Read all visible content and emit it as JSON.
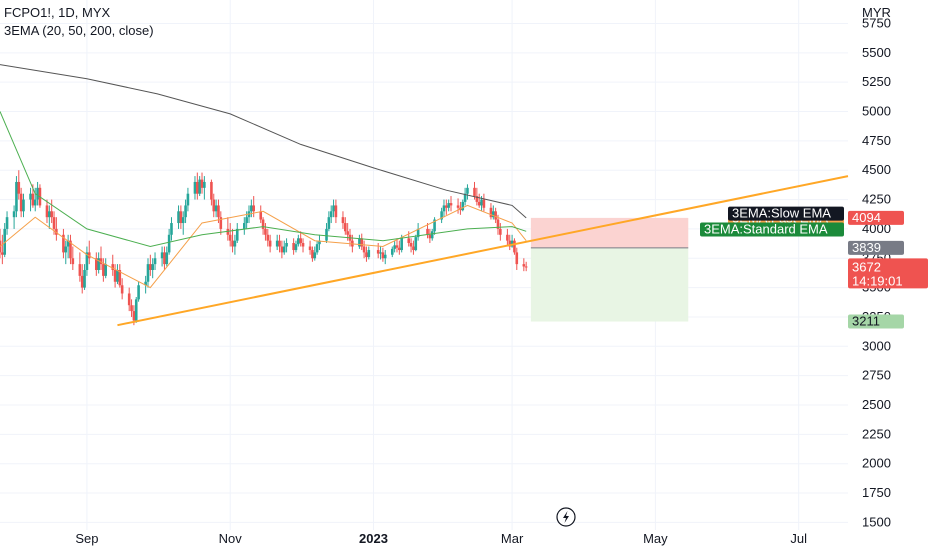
{
  "header": {
    "symbol_line": "FCPO1!, 1D, MYX",
    "indicator_line": "3EMA (20, 50, 200, close)"
  },
  "axis": {
    "currency": "MYR",
    "y_ticks": [
      "5750",
      "5500",
      "5250",
      "5000",
      "4750",
      "4500",
      "4250",
      "4000",
      "3750",
      "3500",
      "3250",
      "3000",
      "2750",
      "2500",
      "2250",
      "2000",
      "1750",
      "1500"
    ],
    "x_ticks": [
      "Sep",
      "Nov",
      "2023",
      "Mar",
      "May",
      "Jul"
    ]
  },
  "price_tags": {
    "slow_ema_value": "4094",
    "entry_value": "3839",
    "last_price": "3672",
    "countdown": "14:19:01",
    "target_value": "3211"
  },
  "ema_labels": {
    "slow": "3EMA:Slow EMA",
    "fast": "3EMA:Fast EMA",
    "standard": "3EMA:Standard EMA"
  },
  "icons": {
    "flash_icon": "lightning-bolt-icon"
  },
  "colors": {
    "up": "#26a69a",
    "down": "#ef5350",
    "slow_ema": "#555555",
    "fast_ema": "#f5a04a",
    "standard_ema": "#4caf50",
    "trendline": "#ffa726",
    "risk_zone": "#fbd3d1",
    "reward_zone": "#e8f5e4"
  },
  "chart_data": {
    "type": "candlestick",
    "symbol": "FCPO1!",
    "interval": "1D",
    "exchange": "MYX",
    "y_unit": "MYR",
    "ylim": [
      1350,
      5950
    ],
    "x_range": [
      "2022-07-26",
      "2023-07-22"
    ],
    "last_close": 3672,
    "candles": [
      [
        "2022-07-26",
        3900,
        4000,
        3750,
        3800
      ],
      [
        "2022-07-27",
        3800,
        3950,
        3700,
        3780
      ],
      [
        "2022-07-28",
        3780,
        4050,
        3760,
        4000
      ],
      [
        "2022-07-29",
        4000,
        4150,
        3950,
        4100
      ],
      [
        "2022-08-01",
        4100,
        4200,
        4000,
        4150
      ],
      [
        "2022-08-02",
        4150,
        4450,
        4100,
        4400
      ],
      [
        "2022-08-03",
        4400,
        4500,
        4250,
        4300
      ],
      [
        "2022-08-04",
        4300,
        4350,
        4100,
        4150
      ],
      [
        "2022-08-05",
        4150,
        4300,
        4100,
        4250
      ],
      [
        "2022-08-08",
        4250,
        4350,
        4150,
        4300
      ],
      [
        "2022-08-09",
        4300,
        4380,
        4180,
        4200
      ],
      [
        "2022-08-10",
        4200,
        4350,
        4150,
        4250
      ],
      [
        "2022-08-11",
        4250,
        4400,
        4200,
        4350
      ],
      [
        "2022-08-12",
        4350,
        4380,
        4180,
        4200
      ],
      [
        "2022-08-15",
        4200,
        4250,
        4050,
        4100
      ],
      [
        "2022-08-16",
        4100,
        4200,
        4000,
        4150
      ],
      [
        "2022-08-17",
        4150,
        4250,
        4050,
        4100
      ],
      [
        "2022-08-18",
        4100,
        4150,
        3950,
        4000
      ],
      [
        "2022-08-19",
        4000,
        4100,
        3900,
        3950
      ],
      [
        "2022-08-22",
        3950,
        4000,
        3750,
        3800
      ],
      [
        "2022-08-23",
        3800,
        3900,
        3700,
        3850
      ],
      [
        "2022-08-24",
        3850,
        3950,
        3750,
        3900
      ],
      [
        "2022-08-25",
        3900,
        3950,
        3700,
        3750
      ],
      [
        "2022-08-26",
        3750,
        3850,
        3650,
        3700
      ],
      [
        "2022-08-29",
        3700,
        3800,
        3550,
        3600
      ],
      [
        "2022-08-30",
        3600,
        3700,
        3450,
        3500
      ],
      [
        "2022-08-31",
        3500,
        3700,
        3480,
        3650
      ],
      [
        "2022-09-01",
        3650,
        3850,
        3600,
        3800
      ],
      [
        "2022-09-02",
        3800,
        3900,
        3700,
        3750
      ],
      [
        "2022-09-05",
        3750,
        3800,
        3600,
        3650
      ],
      [
        "2022-09-06",
        3650,
        3800,
        3620,
        3750
      ],
      [
        "2022-09-07",
        3750,
        3850,
        3650,
        3700
      ],
      [
        "2022-09-08",
        3700,
        3750,
        3550,
        3600
      ],
      [
        "2022-09-09",
        3600,
        3750,
        3580,
        3700
      ],
      [
        "2022-09-12",
        3700,
        3780,
        3600,
        3650
      ],
      [
        "2022-09-13",
        3650,
        3700,
        3500,
        3550
      ],
      [
        "2022-09-14",
        3550,
        3700,
        3530,
        3650
      ],
      [
        "2022-09-15",
        3650,
        3700,
        3500,
        3520
      ],
      [
        "2022-09-16",
        3520,
        3580,
        3400,
        3450
      ],
      [
        "2022-09-19",
        3450,
        3500,
        3300,
        3350
      ],
      [
        "2022-09-20",
        3350,
        3400,
        3250,
        3300
      ],
      [
        "2022-09-21",
        3300,
        3350,
        3180,
        3220
      ],
      [
        "2022-09-22",
        3220,
        3420,
        3200,
        3400
      ],
      [
        "2022-09-23",
        3400,
        3550,
        3380,
        3520
      ],
      [
        "2022-09-26",
        3520,
        3600,
        3450,
        3550
      ],
      [
        "2022-09-27",
        3550,
        3750,
        3500,
        3700
      ],
      [
        "2022-09-28",
        3700,
        3780,
        3600,
        3650
      ],
      [
        "2022-09-29",
        3650,
        3750,
        3580,
        3700
      ],
      [
        "2022-09-30",
        3700,
        3800,
        3650,
        3750
      ],
      [
        "2022-10-03",
        3750,
        3850,
        3680,
        3800
      ],
      [
        "2022-10-04",
        3800,
        3850,
        3650,
        3700
      ],
      [
        "2022-10-05",
        3700,
        3850,
        3680,
        3800
      ],
      [
        "2022-10-06",
        3800,
        4000,
        3780,
        3950
      ],
      [
        "2022-10-07",
        3950,
        4100,
        3900,
        4050
      ],
      [
        "2022-10-10",
        4050,
        4200,
        4000,
        4150
      ],
      [
        "2022-10-11",
        4150,
        4200,
        4000,
        4050
      ],
      [
        "2022-10-12",
        4050,
        4150,
        3950,
        4100
      ],
      [
        "2022-10-13",
        4100,
        4250,
        4050,
        4200
      ],
      [
        "2022-10-14",
        4200,
        4350,
        4150,
        4300
      ],
      [
        "2022-10-17",
        4300,
        4450,
        4250,
        4400
      ],
      [
        "2022-10-18",
        4400,
        4480,
        4250,
        4300
      ],
      [
        "2022-10-19",
        4300,
        4450,
        4280,
        4420
      ],
      [
        "2022-10-20",
        4420,
        4480,
        4300,
        4350
      ],
      [
        "2022-10-21",
        4350,
        4450,
        4250,
        4400
      ],
      [
        "2022-10-24",
        4400,
        4420,
        4200,
        4250
      ],
      [
        "2022-10-25",
        4250,
        4300,
        4100,
        4150
      ],
      [
        "2022-10-26",
        4150,
        4250,
        4100,
        4200
      ],
      [
        "2022-10-27",
        4200,
        4250,
        4050,
        4100
      ],
      [
        "2022-10-28",
        4100,
        4150,
        3950,
        4000
      ],
      [
        "2022-10-31",
        4000,
        4100,
        3900,
        3950
      ],
      [
        "2022-11-01",
        3950,
        4050,
        3850,
        3900
      ],
      [
        "2022-11-02",
        3900,
        4000,
        3800,
        3850
      ],
      [
        "2022-11-03",
        3850,
        3950,
        3780,
        3900
      ],
      [
        "2022-11-04",
        3900,
        4050,
        3880,
        4000
      ],
      [
        "2022-11-07",
        4000,
        4100,
        3950,
        4050
      ],
      [
        "2022-11-08",
        4050,
        4150,
        4000,
        4100
      ],
      [
        "2022-11-09",
        4100,
        4200,
        4050,
        4150
      ],
      [
        "2022-11-10",
        4150,
        4250,
        4100,
        4200
      ],
      [
        "2022-11-11",
        4200,
        4280,
        4100,
        4150
      ],
      [
        "2022-11-14",
        4150,
        4200,
        4050,
        4080
      ],
      [
        "2022-11-15",
        4080,
        4100,
        3950,
        4000
      ],
      [
        "2022-11-16",
        4000,
        4050,
        3900,
        3950
      ],
      [
        "2022-11-17",
        3950,
        4000,
        3850,
        3900
      ],
      [
        "2022-11-18",
        3900,
        3950,
        3800,
        3850
      ],
      [
        "2022-11-21",
        3850,
        3950,
        3820,
        3900
      ],
      [
        "2022-11-22",
        3900,
        3950,
        3800,
        3850
      ],
      [
        "2022-11-23",
        3850,
        3900,
        3750,
        3800
      ],
      [
        "2022-11-24",
        3800,
        3900,
        3780,
        3850
      ],
      [
        "2022-11-25",
        3850,
        3920,
        3800,
        3880
      ],
      [
        "2022-11-28",
        3880,
        3920,
        3780,
        3820
      ],
      [
        "2022-11-29",
        3820,
        3900,
        3800,
        3870
      ],
      [
        "2022-11-30",
        3870,
        3950,
        3850,
        3920
      ],
      [
        "2022-12-01",
        3920,
        3980,
        3850,
        3880
      ],
      [
        "2022-12-02",
        3880,
        3920,
        3800,
        3850
      ],
      [
        "2022-12-05",
        3850,
        3900,
        3780,
        3820
      ],
      [
        "2022-12-06",
        3820,
        3850,
        3720,
        3750
      ],
      [
        "2022-12-07",
        3750,
        3850,
        3730,
        3800
      ],
      [
        "2022-12-08",
        3800,
        3900,
        3780,
        3870
      ],
      [
        "2022-12-09",
        3870,
        3950,
        3820,
        3900
      ],
      [
        "2022-12-12",
        3900,
        4050,
        3880,
        4000
      ],
      [
        "2022-12-13",
        4000,
        4150,
        3980,
        4100
      ],
      [
        "2022-12-14",
        4100,
        4200,
        4050,
        4150
      ],
      [
        "2022-12-15",
        4150,
        4250,
        4100,
        4200
      ],
      [
        "2022-12-16",
        4200,
        4250,
        4050,
        4100
      ],
      [
        "2022-12-19",
        4100,
        4150,
        4000,
        4050
      ],
      [
        "2022-12-20",
        4050,
        4100,
        3950,
        3980
      ],
      [
        "2022-12-21",
        3980,
        4050,
        3900,
        3950
      ],
      [
        "2022-12-22",
        3950,
        4000,
        3850,
        3900
      ],
      [
        "2022-12-23",
        3900,
        3950,
        3800,
        3850
      ],
      [
        "2022-12-26",
        3850,
        3950,
        3830,
        3920
      ],
      [
        "2022-12-27",
        3920,
        3960,
        3820,
        3850
      ],
      [
        "2022-12-28",
        3850,
        3900,
        3750,
        3800
      ],
      [
        "2022-12-29",
        3800,
        3850,
        3720,
        3760
      ],
      [
        "2022-12-30",
        3760,
        3850,
        3740,
        3820
      ],
      [
        "2023-01-03",
        3820,
        3880,
        3750,
        3790
      ],
      [
        "2023-01-04",
        3790,
        3850,
        3740,
        3800
      ],
      [
        "2023-01-05",
        3800,
        3840,
        3720,
        3750
      ],
      [
        "2023-01-06",
        3750,
        3820,
        3700,
        3780
      ],
      [
        "2023-01-09",
        3780,
        3850,
        3760,
        3830
      ],
      [
        "2023-01-10",
        3830,
        3900,
        3800,
        3860
      ],
      [
        "2023-01-11",
        3860,
        3920,
        3800,
        3840
      ],
      [
        "2023-01-12",
        3840,
        3900,
        3780,
        3820
      ],
      [
        "2023-01-13",
        3820,
        3950,
        3800,
        3920
      ],
      [
        "2023-01-16",
        3920,
        3980,
        3850,
        3880
      ],
      [
        "2023-01-17",
        3880,
        3920,
        3800,
        3850
      ],
      [
        "2023-01-18",
        3850,
        3900,
        3780,
        3820
      ],
      [
        "2023-01-19",
        3820,
        3950,
        3810,
        3930
      ],
      [
        "2023-01-20",
        3930,
        4050,
        3900,
        4000
      ],
      [
        "2023-01-24",
        4000,
        4050,
        3920,
        3950
      ],
      [
        "2023-01-25",
        3950,
        4000,
        3880,
        3920
      ],
      [
        "2023-01-26",
        3920,
        4000,
        3900,
        3980
      ],
      [
        "2023-01-27",
        3980,
        4100,
        3950,
        4080
      ],
      [
        "2023-01-30",
        4080,
        4180,
        4050,
        4150
      ],
      [
        "2023-01-31",
        4150,
        4250,
        4100,
        4200
      ],
      [
        "2023-02-01",
        4200,
        4250,
        4120,
        4180
      ],
      [
        "2023-02-02",
        4180,
        4250,
        4150,
        4220
      ],
      [
        "2023-02-03",
        4220,
        4280,
        4150,
        4200
      ],
      [
        "2023-02-06",
        4200,
        4260,
        4130,
        4180
      ],
      [
        "2023-02-07",
        4180,
        4230,
        4120,
        4160
      ],
      [
        "2023-02-08",
        4160,
        4250,
        4150,
        4230
      ],
      [
        "2023-02-09",
        4230,
        4350,
        4200,
        4300
      ],
      [
        "2023-02-10",
        4300,
        4380,
        4250,
        4350
      ],
      [
        "2023-02-13",
        4350,
        4400,
        4250,
        4280
      ],
      [
        "2023-02-14",
        4280,
        4350,
        4200,
        4230
      ],
      [
        "2023-02-15",
        4230,
        4300,
        4180,
        4200
      ],
      [
        "2023-02-16",
        4200,
        4280,
        4150,
        4250
      ],
      [
        "2023-02-17",
        4250,
        4300,
        4150,
        4180
      ],
      [
        "2023-02-20",
        4180,
        4220,
        4080,
        4100
      ],
      [
        "2023-02-21",
        4100,
        4200,
        4080,
        4150
      ],
      [
        "2023-02-22",
        4150,
        4180,
        4050,
        4080
      ],
      [
        "2023-02-23",
        4080,
        4120,
        3950,
        4000
      ],
      [
        "2023-02-24",
        4000,
        4050,
        3900,
        3950
      ],
      [
        "2023-02-27",
        3950,
        4000,
        3850,
        3900
      ],
      [
        "2023-02-28",
        3900,
        3950,
        3820,
        3850
      ],
      [
        "2023-03-01",
        3850,
        3950,
        3840,
        3900
      ],
      [
        "2023-03-02",
        3900,
        3920,
        3780,
        3800
      ],
      [
        "2023-03-03",
        3800,
        3840,
        3650,
        3700
      ],
      [
        "2023-03-06",
        3700,
        3750,
        3640,
        3680
      ],
      [
        "2023-03-07",
        3680,
        3720,
        3640,
        3672
      ]
    ],
    "ema_series": [
      {
        "name": "3EMA:Slow EMA",
        "values": [
          [
            "2022-07-26",
            5400
          ],
          [
            "2022-09-01",
            5280
          ],
          [
            "2022-10-01",
            5150
          ],
          [
            "2022-11-01",
            4980
          ],
          [
            "2022-12-01",
            4720
          ],
          [
            "2023-01-01",
            4520
          ],
          [
            "2023-02-01",
            4330
          ],
          [
            "2023-03-01",
            4200
          ],
          [
            "2023-03-07",
            4094
          ]
        ]
      },
      {
        "name": "3EMA:Fast EMA",
        "values": [
          [
            "2022-07-26",
            3850
          ],
          [
            "2022-08-10",
            4100
          ],
          [
            "2022-09-01",
            3780
          ],
          [
            "2022-09-28",
            3500
          ],
          [
            "2022-10-20",
            4050
          ],
          [
            "2022-11-15",
            4150
          ],
          [
            "2022-12-07",
            3900
          ],
          [
            "2023-01-05",
            3850
          ],
          [
            "2023-02-10",
            4200
          ],
          [
            "2023-03-01",
            4050
          ],
          [
            "2023-03-07",
            3900
          ]
        ]
      },
      {
        "name": "3EMA:Standard EMA",
        "values": [
          [
            "2022-07-26",
            5000
          ],
          [
            "2022-08-10",
            4300
          ],
          [
            "2022-09-01",
            4000
          ],
          [
            "2022-09-28",
            3850
          ],
          [
            "2022-10-20",
            3950
          ],
          [
            "2022-11-15",
            4020
          ],
          [
            "2022-12-07",
            3950
          ],
          [
            "2023-01-05",
            3900
          ],
          [
            "2023-02-10",
            4000
          ],
          [
            "2023-03-01",
            4020
          ],
          [
            "2023-03-07",
            3980
          ]
        ]
      }
    ],
    "trendline": {
      "points": [
        [
          "2022-09-14",
          3180
        ],
        [
          "2023-07-22",
          4450
        ]
      ]
    },
    "position": {
      "entry": 3839,
      "stop": 4094,
      "target": 3211,
      "start": "2023-03-09",
      "end": "2023-05-15"
    }
  }
}
